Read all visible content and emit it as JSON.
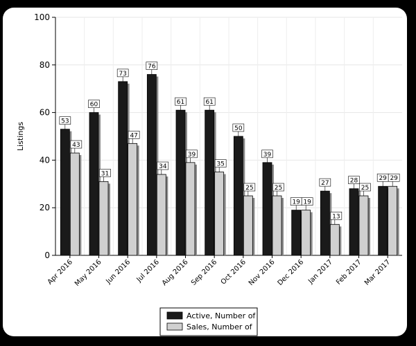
{
  "chart_data": {
    "type": "bar",
    "ylabel": "Listings",
    "xlabel": "",
    "ylim": [
      0,
      100
    ],
    "yticks": [
      0,
      20,
      40,
      60,
      80,
      100
    ],
    "grid": true,
    "legend_position": "bottom",
    "categories": [
      "Apr 2016",
      "May 2016",
      "Jun 2016",
      "Jul 2016",
      "Aug 2016",
      "Sep 2016",
      "Oct 2016",
      "Nov 2016",
      "Dec 2016",
      "Jan 2017",
      "Feb 2017",
      "Mar 2017"
    ],
    "series": [
      {
        "name": "Active, Number of",
        "color": "#1a1a1a",
        "values": [
          53,
          60,
          73,
          76,
          61,
          61,
          50,
          39,
          19,
          27,
          28,
          29
        ]
      },
      {
        "name": "Sales, Number of",
        "color": "#d0d0d0",
        "values": [
          43,
          31,
          47,
          34,
          39,
          35,
          25,
          25,
          19,
          13,
          25,
          29
        ]
      }
    ]
  }
}
